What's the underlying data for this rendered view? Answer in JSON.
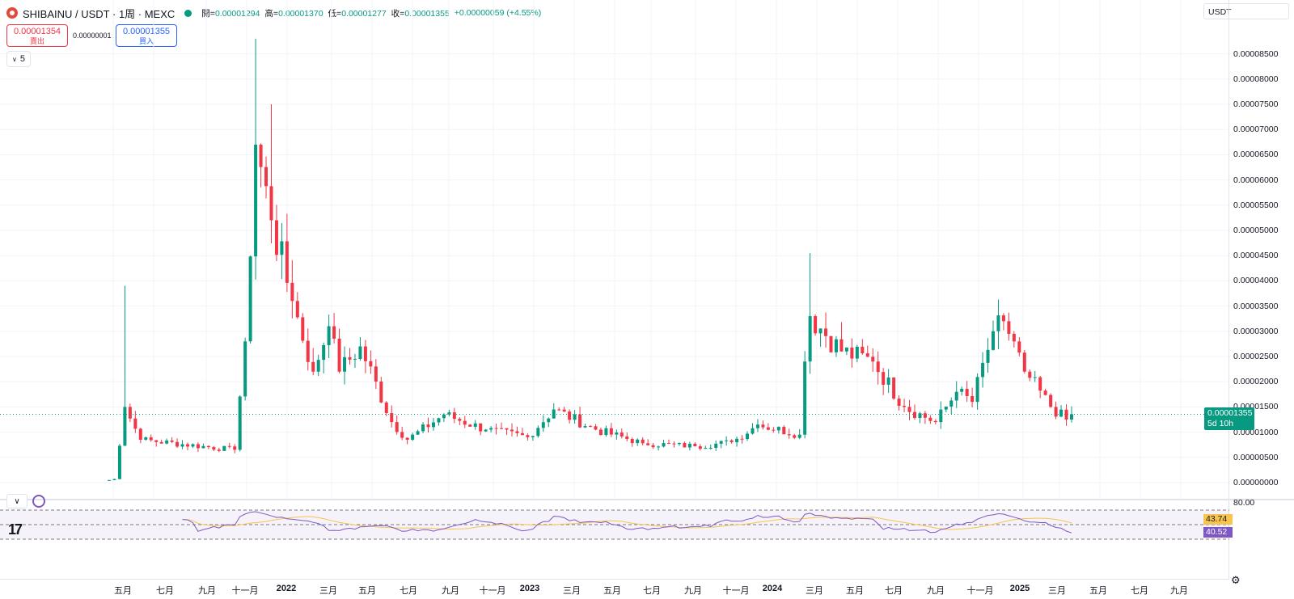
{
  "header": {
    "symbol": "SHIBAINU / USDT · 1周 · MEXC",
    "open_label": "開",
    "open": "0.00001294",
    "high_label": "高",
    "high": "0.00001370",
    "low_label": "低",
    "low": "0.00001277",
    "close_label": "收",
    "close": "0.00001355",
    "change": "+0.00000059 (+4.55%)"
  },
  "trade": {
    "sell_price": "0.00001354",
    "sell_label": "賣出",
    "spread": "0.00000001",
    "buy_price": "0.00001355",
    "buy_label": "買入"
  },
  "indicator_toggle": {
    "count": "5"
  },
  "currency": "USDT",
  "price_axis": [
    "0.00008500",
    "0.00008000",
    "0.00007500",
    "0.00007000",
    "0.00006500",
    "0.00006000",
    "0.00005500",
    "0.00005000",
    "0.00004500",
    "0.00004000",
    "0.00003500",
    "0.00003000",
    "0.00002500",
    "0.00002000",
    "0.00001500",
    "0.00001000",
    "0.00000500",
    "0.00000000"
  ],
  "last_price_tag": {
    "price": "0.00001355",
    "countdown": "5d 10h"
  },
  "rsi_panel": {
    "level_80": "80.00",
    "rsi_value": "43.74",
    "rsi_ma_value": "40.52",
    "colors": {
      "rsi": "#7e57c2",
      "ma": "#f7c54d",
      "band": "#7e57c2"
    }
  },
  "time_axis": [
    "五月",
    "七月",
    "九月",
    "十一月",
    "2022",
    "三月",
    "五月",
    "七月",
    "九月",
    "十一月",
    "2023",
    "三月",
    "五月",
    "七月",
    "九月",
    "十一月",
    "2024",
    "三月",
    "五月",
    "七月",
    "九月",
    "十一月",
    "2025",
    "三月",
    "五月",
    "七月",
    "九月"
  ],
  "colors": {
    "up": "#089981",
    "down": "#f23645"
  },
  "chart_data": {
    "type": "candlestick",
    "interval": "1W",
    "y_unit": "USDT",
    "ylim": [
      0,
      9e-05
    ],
    "segments": [
      {
        "weeks": 1,
        "close": 5e-07
      },
      {
        "weeks": 1,
        "close": 7e-07
      },
      {
        "weeks": 2,
        "close": 1.5e-05,
        "spike": 3.9e-05
      },
      {
        "weeks": 3,
        "close": 8.5e-06
      },
      {
        "weeks": 18,
        "close": 6.5e-06
      },
      {
        "weeks": 2,
        "close": 2.8e-05
      },
      {
        "weeks": 2,
        "close": 6.7e-05,
        "spike": 8.8e-05
      },
      {
        "weeks": 3,
        "close": 5.2e-05,
        "spike": 7.5e-05
      },
      {
        "weeks": 4,
        "close": 3.6e-05
      },
      {
        "weeks": 4,
        "close": 2.2e-05
      },
      {
        "weeks": 3,
        "close": 3.1e-05
      },
      {
        "weeks": 2,
        "close": 2.2e-05
      },
      {
        "weeks": 4,
        "close": 2.7e-05
      },
      {
        "weeks": 6,
        "close": 1.2e-05
      },
      {
        "weeks": 3,
        "close": 8.5e-06
      },
      {
        "weeks": 7,
        "close": 1.35e-05
      },
      {
        "weeks": 8,
        "close": 1.05e-05
      },
      {
        "weeks": 8,
        "close": 9e-06
      },
      {
        "weeks": 5,
        "close": 1.45e-05
      },
      {
        "weeks": 8,
        "close": 1.05e-05
      },
      {
        "weeks": 9,
        "close": 7.8e-06
      },
      {
        "weeks": 10,
        "close": 7.2e-06
      },
      {
        "weeks": 7,
        "close": 8e-06
      },
      {
        "weeks": 5,
        "close": 1.15e-05
      },
      {
        "weeks": 8,
        "close": 9.5e-06
      },
      {
        "weeks": 1,
        "close": 2.4e-05
      },
      {
        "weeks": 1,
        "close": 3.3e-05,
        "spike": 4.55e-05
      },
      {
        "weeks": 6,
        "close": 2.6e-05
      },
      {
        "weeks": 6,
        "close": 2.4e-05
      },
      {
        "weeks": 6,
        "close": 1.5e-05
      },
      {
        "weeks": 6,
        "close": 1.2e-05
      },
      {
        "weeks": 4,
        "close": 1.8e-05
      },
      {
        "weeks": 3,
        "close": 1.6e-05
      },
      {
        "weeks": 4,
        "close": 3e-05
      },
      {
        "weeks": 2,
        "close": 3.2e-05
      },
      {
        "weeks": 4,
        "close": 2.2e-05
      },
      {
        "weeks": 5,
        "close": 1.5e-05
      },
      {
        "weeks": 3,
        "close": 1.25e-05
      },
      {
        "weeks": 1,
        "close": 1.355e-05
      }
    ]
  }
}
